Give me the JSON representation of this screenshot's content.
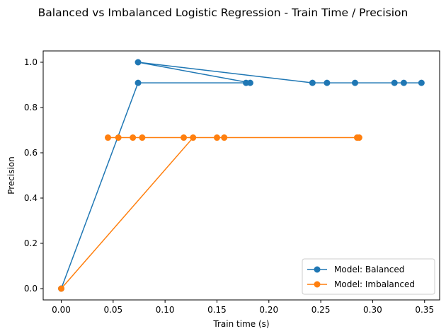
{
  "chart_data": {
    "type": "line",
    "title": "Balanced vs Imbalanced Logistic Regression - Train Time / Precision",
    "xlabel": "Train time (s)",
    "ylabel": "Precision",
    "xlim": [
      -0.0174,
      0.3645
    ],
    "ylim": [
      -0.05,
      1.05
    ],
    "xticks": [
      0.0,
      0.05,
      0.1,
      0.15,
      0.2,
      0.25,
      0.3,
      0.35
    ],
    "xtick_labels": [
      "0.00",
      "0.05",
      "0.10",
      "0.15",
      "0.20",
      "0.25",
      "0.30",
      "0.35"
    ],
    "yticks": [
      0.0,
      0.2,
      0.4,
      0.6,
      0.8,
      1.0
    ],
    "ytick_labels": [
      "0.0",
      "0.2",
      "0.4",
      "0.6",
      "0.8",
      "1.0"
    ],
    "grid": false,
    "legend_position": "lower-right",
    "markers": "circle",
    "series": [
      {
        "name": "Model: Balanced",
        "color": "#1f77b4",
        "points": [
          [
            0.0,
            0.0
          ],
          [
            0.074,
            0.909
          ],
          [
            0.178,
            0.909
          ],
          [
            0.182,
            0.909
          ],
          [
            0.074,
            1.0
          ],
          [
            0.242,
            0.909
          ],
          [
            0.256,
            0.909
          ],
          [
            0.283,
            0.909
          ],
          [
            0.321,
            0.909
          ],
          [
            0.33,
            0.909
          ],
          [
            0.347,
            0.909
          ]
        ]
      },
      {
        "name": "Model: Imbalanced",
        "color": "#ff7f0e",
        "points": [
          [
            0.0,
            0.0
          ],
          [
            0.127,
            0.667
          ],
          [
            0.045,
            0.667
          ],
          [
            0.055,
            0.667
          ],
          [
            0.069,
            0.667
          ],
          [
            0.078,
            0.667
          ],
          [
            0.118,
            0.667
          ],
          [
            0.15,
            0.667
          ],
          [
            0.157,
            0.667
          ],
          [
            0.285,
            0.667
          ],
          [
            0.287,
            0.667
          ]
        ]
      }
    ]
  }
}
